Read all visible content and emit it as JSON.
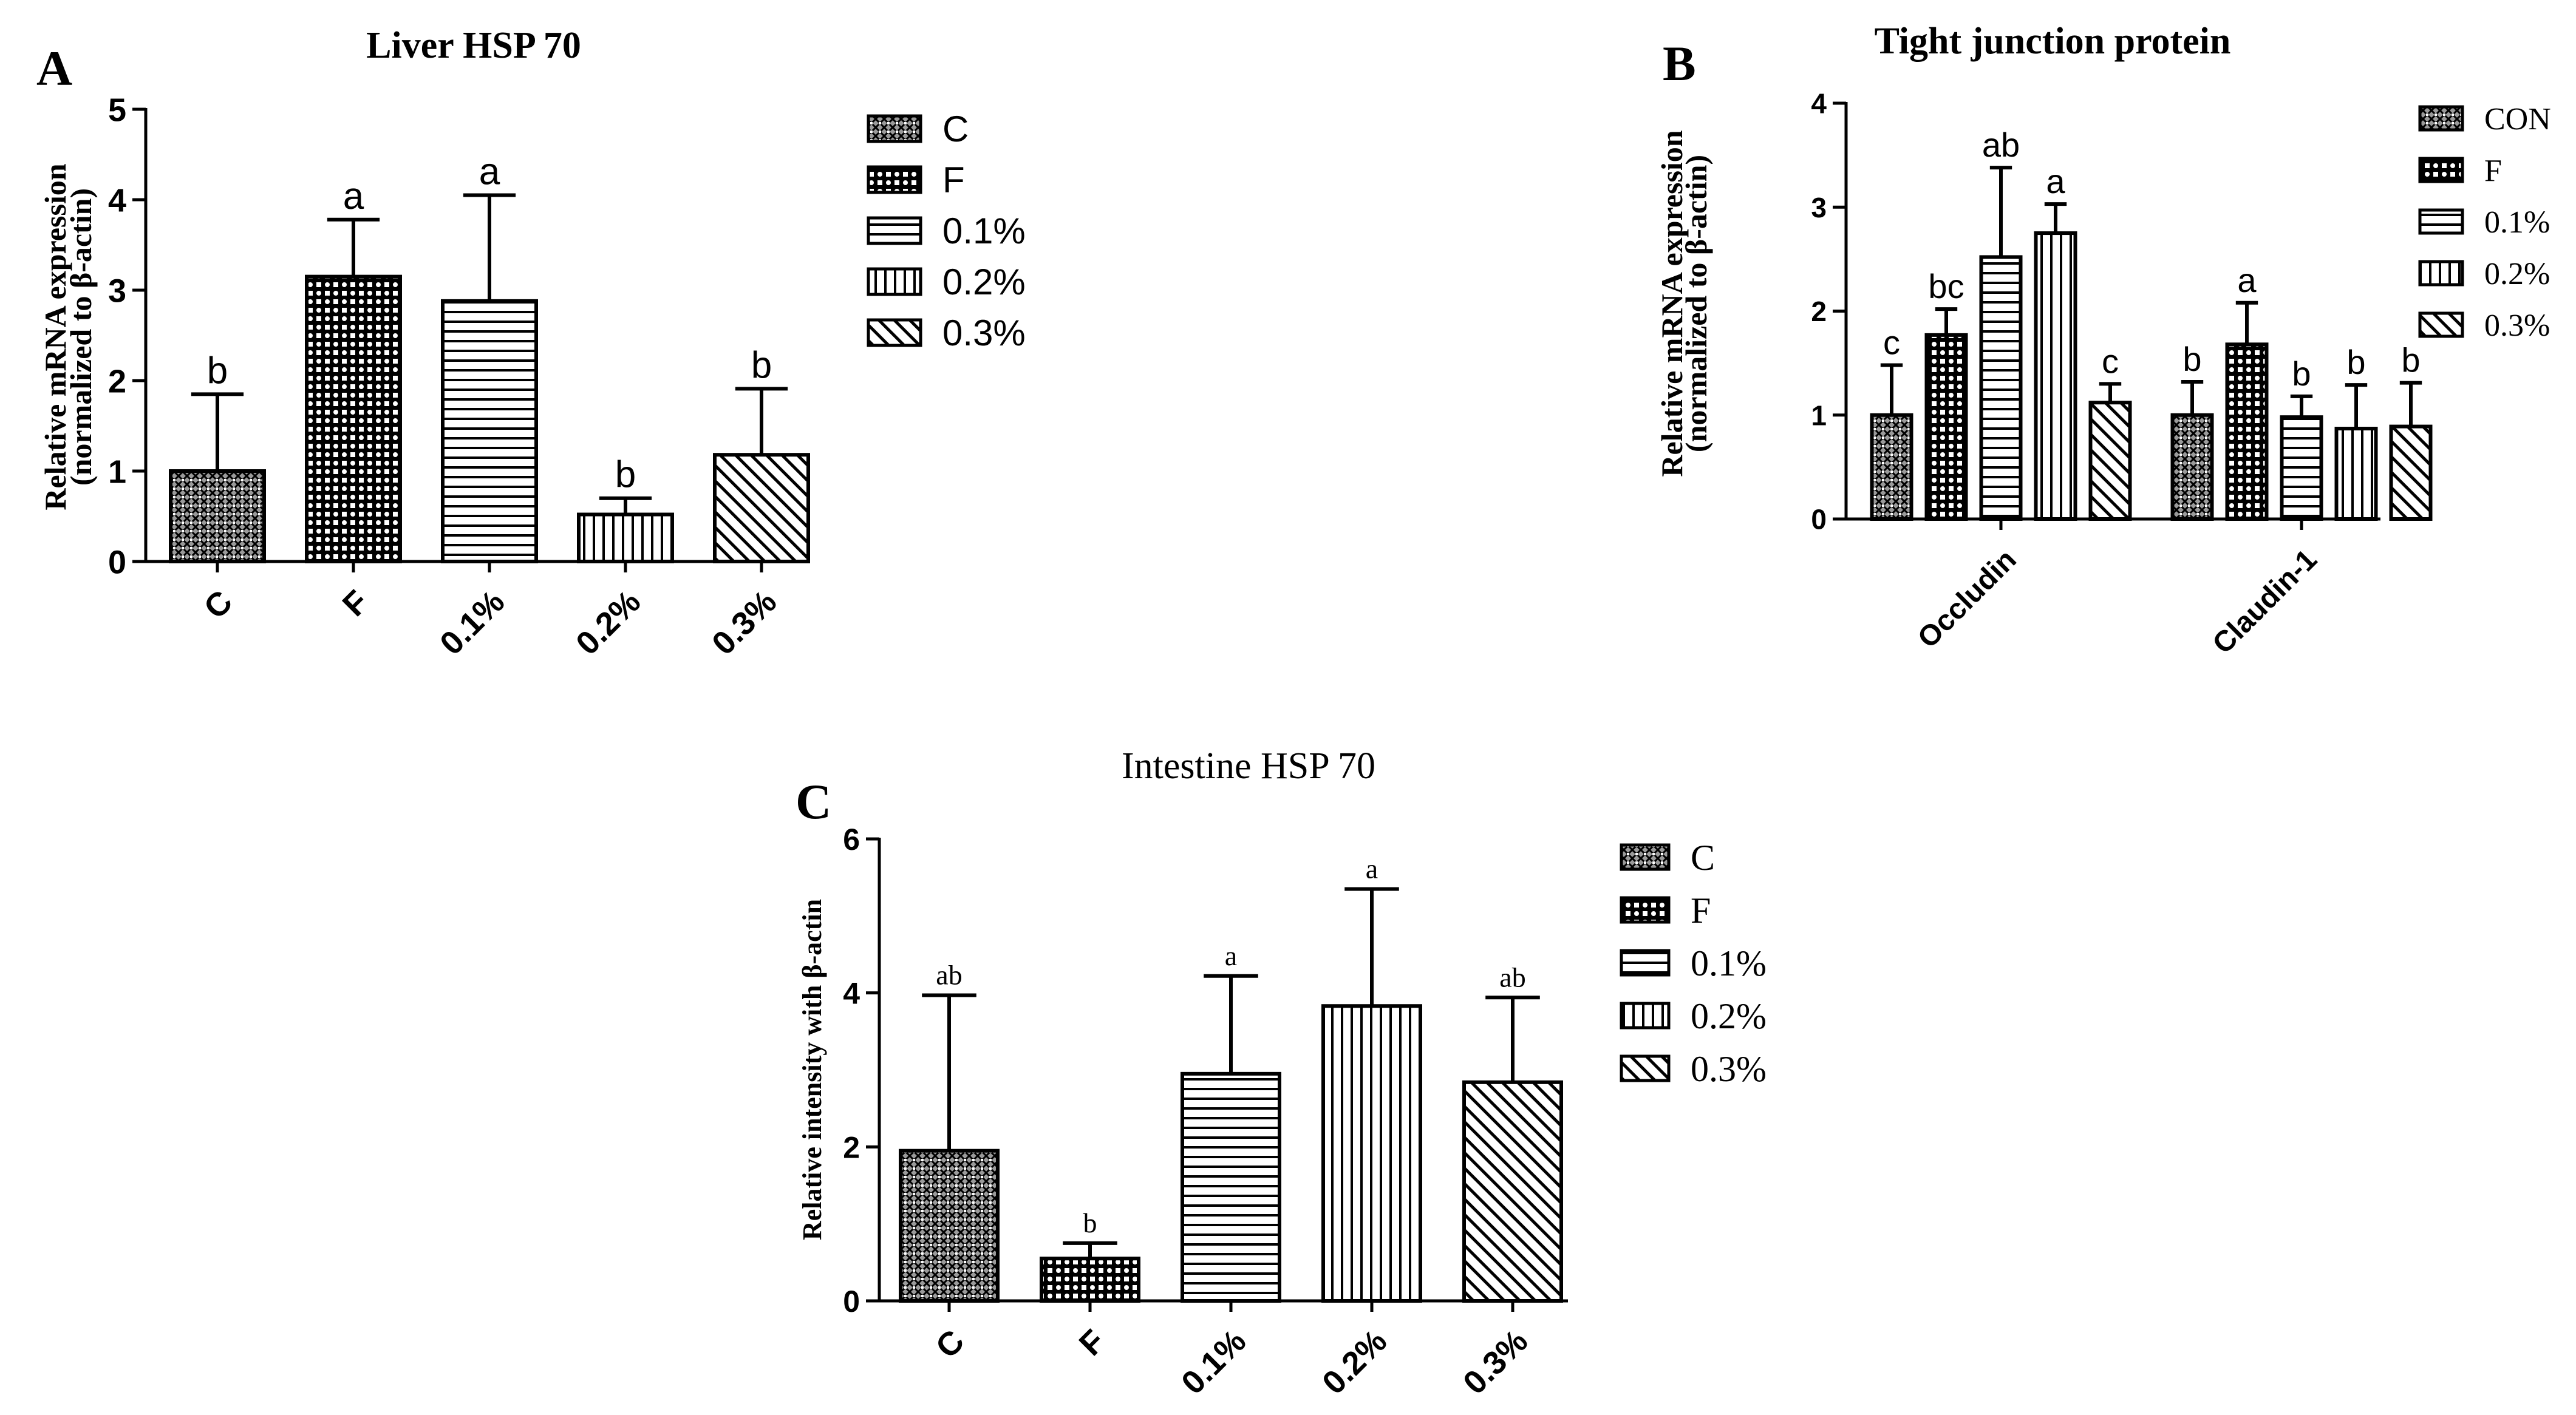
{
  "chart_data": [
    {
      "panel_label": "A",
      "type": "bar",
      "title": "Liver HSP 70",
      "ylabel_line1": "Relative mRNA expression",
      "ylabel_line2": "(normalized to β-actin)",
      "categories": [
        "C",
        "F",
        "0.1%",
        "0.2%",
        "0.3%"
      ],
      "values": [
        1.0,
        3.15,
        2.88,
        0.52,
        1.18
      ],
      "errors": [
        0.85,
        0.63,
        1.17,
        0.18,
        0.73
      ],
      "letters": [
        "b",
        "a",
        "a",
        "b",
        "b"
      ],
      "ylim": [
        0,
        5
      ],
      "yticks": [
        "0",
        "1",
        "2",
        "3",
        "4",
        "5"
      ],
      "legend": [
        "C",
        "F",
        "0.1%",
        "0.2%",
        "0.3%"
      ],
      "patterns": [
        "dense",
        "checker",
        "hlines",
        "vlines",
        "diag"
      ],
      "legend_position": "right"
    },
    {
      "panel_label": "B",
      "type": "bar",
      "title": "Tight junction protein",
      "ylabel_line1": "Relative mRNA expression",
      "ylabel_line2": "(normalized to β-actin)",
      "categories": [
        "Occludin",
        "Claudin-1"
      ],
      "series": [
        {
          "name": "CON",
          "values": [
            1.0,
            1.0
          ],
          "errors": [
            0.48,
            0.32
          ],
          "letters": [
            "c",
            "b"
          ]
        },
        {
          "name": "F",
          "values": [
            1.77,
            1.68
          ],
          "errors": [
            0.25,
            0.4
          ],
          "letters": [
            "bc",
            "a"
          ]
        },
        {
          "name": "0.1%",
          "values": [
            2.52,
            0.98
          ],
          "errors": [
            0.86,
            0.2
          ],
          "letters": [
            "ab",
            "b"
          ]
        },
        {
          "name": "0.2%",
          "values": [
            2.75,
            0.87
          ],
          "errors": [
            0.28,
            0.42
          ],
          "letters": [
            "a",
            "b"
          ]
        },
        {
          "name": "0.3%",
          "values": [
            1.12,
            0.89
          ],
          "errors": [
            0.18,
            0.42
          ],
          "letters": [
            "c",
            "b"
          ]
        }
      ],
      "ylim": [
        0,
        4
      ],
      "yticks": [
        "0",
        "1",
        "2",
        "3",
        "4"
      ],
      "patterns": [
        "dense",
        "checker",
        "hlines",
        "vlines",
        "diag"
      ],
      "legend_position": "right"
    },
    {
      "panel_label": "C",
      "type": "bar",
      "title": "Intestine HSP 70",
      "ylabel": "Relative intensity with β-actin",
      "categories": [
        "C",
        "F",
        "0.1%",
        "0.2%",
        "0.3%"
      ],
      "values": [
        1.95,
        0.55,
        2.95,
        3.83,
        2.84
      ],
      "errors": [
        2.02,
        0.2,
        1.27,
        1.52,
        1.1
      ],
      "letters": [
        "ab",
        "b",
        "a",
        "a",
        "ab"
      ],
      "ylim": [
        0,
        6
      ],
      "yticks": [
        "0",
        "2",
        "4",
        "6"
      ],
      "legend": [
        "C",
        "F",
        "0.1%",
        "0.2%",
        "0.3%"
      ],
      "patterns": [
        "dense",
        "checker",
        "hlines",
        "vlines",
        "diag"
      ],
      "legend_position": "right"
    }
  ]
}
